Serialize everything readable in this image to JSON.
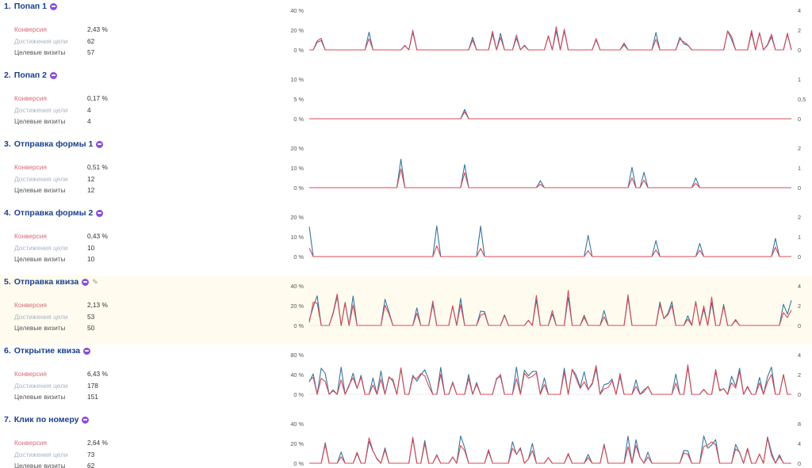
{
  "colors": {
    "conversion": "#d84a55",
    "visits": "#3a75a0",
    "title": "#1a3f8f",
    "highlight_bg": "#fffcef"
  },
  "labels": {
    "conversion": "Конверсия",
    "achievements": "Достижения цели",
    "visits": "Целевые визиты"
  },
  "goals": [
    {
      "num": "1.",
      "name": "Попап 1",
      "badge_icon": "goal-badge-icon",
      "conversion": "2,43 %",
      "achievements": "62",
      "visits": "57",
      "left_ticks": [
        "40 %",
        "20 %",
        "0 %"
      ],
      "right_ticks": [
        "4",
        "2",
        "0"
      ],
      "seed": 11,
      "density": 0.22,
      "maxA": 0.55,
      "maxB": 0.55
    },
    {
      "num": "2.",
      "name": "Попап 2",
      "badge_icon": "goal-badge-icon",
      "conversion": "0,17 %",
      "achievements": "4",
      "visits": "4",
      "left_ticks": [
        "10 %",
        "5 %",
        "0 %"
      ],
      "right_ticks": [
        "1",
        "0,5",
        "0"
      ],
      "seed": 23,
      "density": 0.02,
      "maxA": 1.0,
      "maxB": 1.0
    },
    {
      "num": "3.",
      "name": "Отправка формы 1",
      "badge_icon": "goal-badge-icon",
      "conversion": "0,51 %",
      "achievements": "12",
      "visits": "12",
      "left_ticks": [
        "20 %",
        "10 %",
        "0 %"
      ],
      "right_ticks": [
        "2",
        "1",
        "0"
      ],
      "seed": 37,
      "density": 0.05,
      "maxA": 0.55,
      "maxB": 1.0
    },
    {
      "num": "4.",
      "name": "Отправка формы 2",
      "badge_icon": "goal-badge-icon",
      "conversion": "0,43 %",
      "achievements": "10",
      "visits": "10",
      "left_ticks": [
        "20 %",
        "10 %",
        "0 %"
      ],
      "right_ticks": [
        "2",
        "1",
        "0"
      ],
      "seed": 53,
      "density": 0.05,
      "maxA": 0.4,
      "maxB": 1.0
    },
    {
      "num": "5.",
      "name": "Отправка квиза",
      "badge_icon": "goal-badge-icon",
      "edit_icon": "pencil-icon",
      "conversion": "2,13 %",
      "achievements": "53",
      "visits": "50",
      "left_ticks": [
        "40 %",
        "20 %",
        "0 %"
      ],
      "right_ticks": [
        "4",
        "2",
        "0"
      ],
      "seed": 71,
      "density": 0.25,
      "maxA": 0.7,
      "maxB": 0.75
    },
    {
      "num": "6.",
      "name": "Открытие квиза",
      "badge_icon": "goal-badge-icon",
      "conversion": "6,43 %",
      "achievements": "178",
      "visits": "151",
      "left_ticks": [
        "80 %",
        "40 %",
        "0 %"
      ],
      "right_ticks": [
        "4",
        "2",
        "0"
      ],
      "seed": 89,
      "density": 0.55,
      "maxA": 0.6,
      "maxB": 0.7
    },
    {
      "num": "7.",
      "name": "Клик по номеру",
      "badge_icon": "goal-badge-icon",
      "conversion": "2,64 %",
      "achievements": "73",
      "visits": "62",
      "left_ticks": [
        "40 %",
        "20 %",
        "0 %"
      ],
      "right_ticks": [
        "8",
        "4",
        "0"
      ],
      "seed": 97,
      "density": 0.28,
      "maxA": 0.65,
      "maxB": 0.7
    }
  ]
}
